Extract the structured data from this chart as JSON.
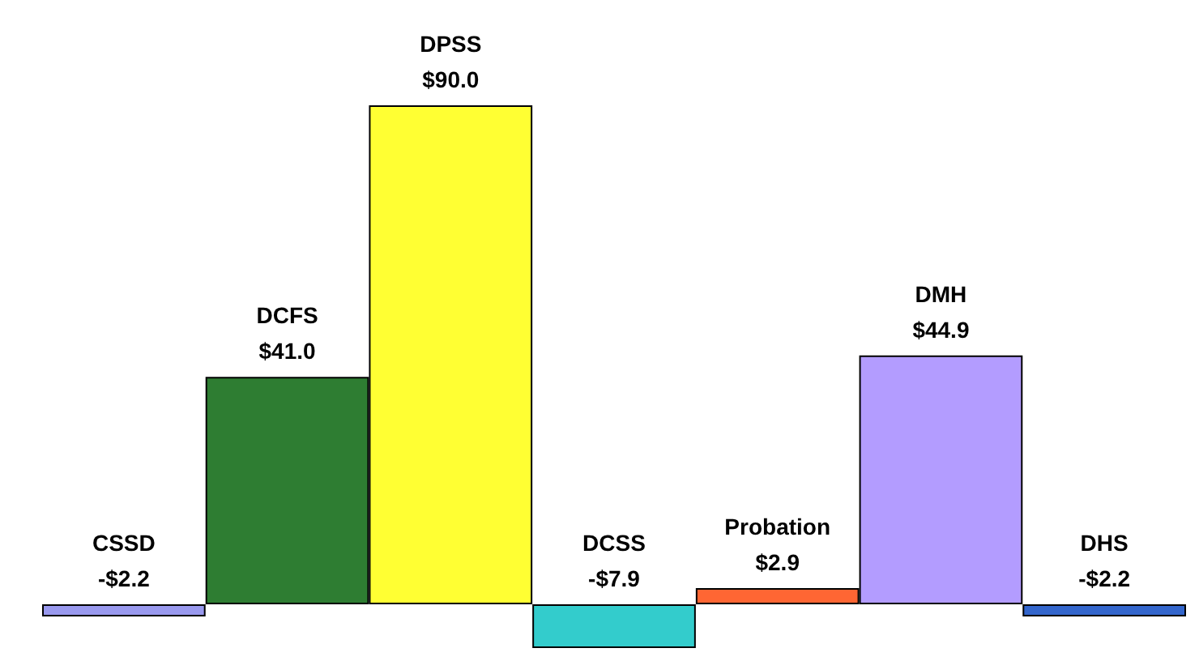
{
  "chart_data": {
    "type": "bar",
    "categories": [
      "CSSD",
      "DCFS",
      "DPSS",
      "DCSS",
      "Probation",
      "DMH",
      "DHS"
    ],
    "values": [
      -2.2,
      41.0,
      90.0,
      -7.9,
      2.9,
      44.9,
      -2.2
    ],
    "value_labels": [
      "-$2.2",
      "$41.0",
      "$90.0",
      "-$7.9",
      "$2.9",
      "$44.9",
      "-$2.2"
    ],
    "colors": [
      "#9999ee",
      "#2e7d32",
      "#ffff33",
      "#33cccc",
      "#ff6633",
      "#b39cff",
      "#3366cc"
    ]
  }
}
